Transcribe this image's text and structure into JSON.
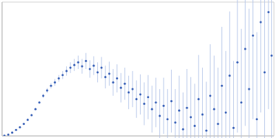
{
  "chart_data": {
    "type": "scatter",
    "color": "#3a62b8",
    "grid": true,
    "tick_labels": false,
    "xlim": [
      0,
      3.5
    ],
    "ylim": [
      0,
      2
    ],
    "xticks": [
      1
    ],
    "yticks": [
      1
    ],
    "marker": "circle",
    "x": [
      0.03,
      0.08,
      0.13,
      0.18,
      0.23,
      0.28,
      0.33,
      0.38,
      0.43,
      0.48,
      0.53,
      0.58,
      0.63,
      0.68,
      0.73,
      0.78,
      0.83,
      0.88,
      0.93,
      0.98,
      1.03,
      1.08,
      1.13,
      1.18,
      1.23,
      1.28,
      1.33,
      1.38,
      1.43,
      1.48,
      1.53,
      1.58,
      1.63,
      1.68,
      1.73,
      1.78,
      1.83,
      1.88,
      1.93,
      1.98,
      2.03,
      2.08,
      2.13,
      2.18,
      2.23,
      2.28,
      2.33,
      2.38,
      2.43,
      2.48,
      2.53,
      2.58,
      2.63,
      2.68,
      2.73,
      2.78,
      2.83,
      2.88,
      2.93,
      2.98,
      3.03,
      3.08,
      3.13,
      3.18,
      3.23,
      3.28,
      3.33,
      3.38,
      3.43,
      3.47
    ],
    "values": [
      0.005,
      0.02,
      0.05,
      0.09,
      0.13,
      0.18,
      0.24,
      0.31,
      0.4,
      0.5,
      0.6,
      0.68,
      0.75,
      0.8,
      0.86,
      0.91,
      0.97,
      1.02,
      1.06,
      1.1,
      1.04,
      1.12,
      1.0,
      1.05,
      0.95,
      1.02,
      0.88,
      0.93,
      0.8,
      0.86,
      0.72,
      0.78,
      0.65,
      0.7,
      0.55,
      0.62,
      0.48,
      0.58,
      0.4,
      0.5,
      0.3,
      0.45,
      0.25,
      0.52,
      0.2,
      0.38,
      0.1,
      0.42,
      0.28,
      0.15,
      0.55,
      0.32,
      0.08,
      0.6,
      0.4,
      0.18,
      0.75,
      0.35,
      0.9,
      0.12,
      1.1,
      0.5,
      1.3,
      0.7,
      1.5,
      0.25,
      1.7,
      0.95,
      1.85,
      1.2
    ],
    "errors": [
      0.002,
      0.003,
      0.004,
      0.005,
      0.006,
      0.008,
      0.01,
      0.012,
      0.015,
      0.02,
      0.03,
      0.035,
      0.04,
      0.05,
      0.05,
      0.06,
      0.07,
      0.08,
      0.09,
      0.1,
      0.11,
      0.12,
      0.13,
      0.14,
      0.15,
      0.16,
      0.17,
      0.18,
      0.2,
      0.21,
      0.22,
      0.24,
      0.25,
      0.27,
      0.28,
      0.3,
      0.32,
      0.33,
      0.35,
      0.37,
      0.4,
      0.42,
      0.45,
      0.47,
      0.5,
      0.52,
      0.55,
      0.58,
      0.6,
      0.63,
      0.66,
      0.7,
      0.73,
      0.77,
      0.8,
      0.84,
      0.88,
      0.92,
      0.96,
      1.0,
      1.05,
      1.1,
      1.15,
      1.2,
      1.25,
      1.3,
      1.35,
      1.4,
      1.45,
      1.5
    ]
  }
}
